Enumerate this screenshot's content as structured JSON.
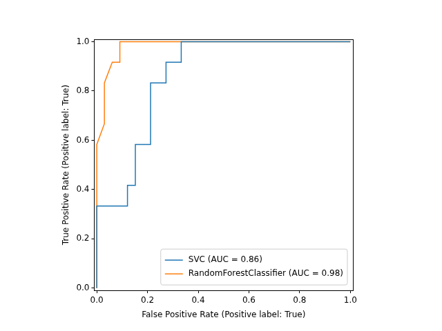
{
  "chart_data": {
    "type": "line",
    "x_label": "False Positive Rate (Positive label: True)",
    "y_label": "True Positive Rate (Positive label: True)",
    "series": [
      {
        "name": "SVC (AUC = 0.86)",
        "color": "#1f77b4",
        "x": [
          0,
          0,
          0.121,
          0.121,
          0.152,
          0.152,
          0.212,
          0.212,
          0.273,
          0.273,
          0.333,
          0.333,
          1
        ],
        "values": [
          0,
          0.333,
          0.333,
          0.417,
          0.417,
          0.583,
          0.583,
          0.833,
          0.833,
          0.917,
          0.917,
          1,
          1
        ]
      },
      {
        "name": "RandomForestClassifier (AUC = 0.98)",
        "color": "#ff7f0e",
        "x": [
          0,
          0,
          0.03,
          0.03,
          0.061,
          0.091,
          0.091,
          1
        ],
        "values": [
          0,
          0.583,
          0.667,
          0.833,
          0.917,
          0.917,
          1,
          1
        ]
      }
    ],
    "xlim": [
      -0.01,
      1.01
    ],
    "ylim": [
      -0.01,
      1.01
    ],
    "xticks": [
      {
        "value": 0,
        "label": "0.0"
      },
      {
        "value": 0.2,
        "label": "0.2"
      },
      {
        "value": 0.4,
        "label": "0.4"
      },
      {
        "value": 0.6,
        "label": "0.6"
      },
      {
        "value": 0.8,
        "label": "0.8"
      },
      {
        "value": 1,
        "label": "1.0"
      }
    ],
    "yticks": [
      {
        "value": 0,
        "label": "0.0"
      },
      {
        "value": 0.2,
        "label": "0.2"
      },
      {
        "value": 0.4,
        "label": "0.4"
      },
      {
        "value": 0.6,
        "label": "0.6"
      },
      {
        "value": 0.8,
        "label": "0.8"
      },
      {
        "value": 1,
        "label": "1.0"
      }
    ],
    "grid": false,
    "legend": "lower right"
  }
}
